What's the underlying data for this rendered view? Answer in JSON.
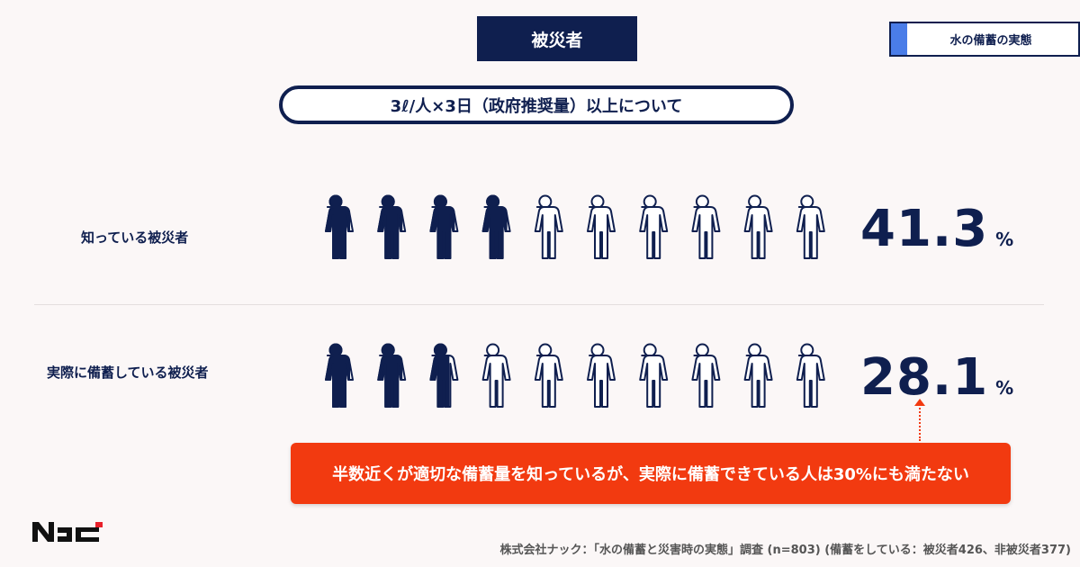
{
  "header": {
    "title": "被災者",
    "tag": "水の備蓄の実態",
    "subtitle": "3ℓ/人×3日（政府推奨量）以上について"
  },
  "colors": {
    "navy": "#0f1f4f",
    "accent_blue": "#4a7de8",
    "callout_red": "#f23a10"
  },
  "chart_data": {
    "type": "pictograph",
    "icon": "person-icon",
    "icons_per_row": 10,
    "series": [
      {
        "label": "知っている被災者",
        "value": 41.3,
        "display": "41.3",
        "unit": "%"
      },
      {
        "label": "実際に備蓄している被災者",
        "value": 28.1,
        "display": "28.1",
        "unit": "%"
      }
    ]
  },
  "callout": "半数近くが適切な備蓄量を知っているが、実際に備蓄できている人は30%にも満たない",
  "logo": "NAC",
  "source": "株式会社ナック：「水の備蓄と災害時の実態」調査 (n=803) (備蓄をしている：被災者426、非被災者377)"
}
